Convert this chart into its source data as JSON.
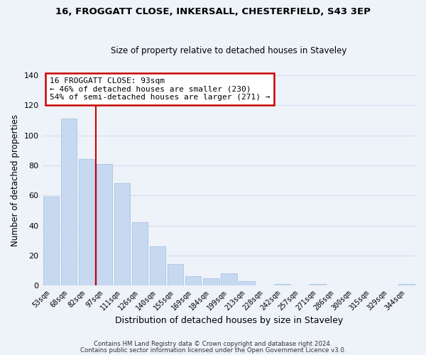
{
  "title_line1": "16, FROGGATT CLOSE, INKERSALL, CHESTERFIELD, S43 3EP",
  "title_line2": "Size of property relative to detached houses in Staveley",
  "xlabel": "Distribution of detached houses by size in Staveley",
  "ylabel": "Number of detached properties",
  "bar_labels": [
    "53sqm",
    "68sqm",
    "82sqm",
    "97sqm",
    "111sqm",
    "126sqm",
    "140sqm",
    "155sqm",
    "169sqm",
    "184sqm",
    "199sqm",
    "213sqm",
    "228sqm",
    "242sqm",
    "257sqm",
    "271sqm",
    "286sqm",
    "300sqm",
    "315sqm",
    "329sqm",
    "344sqm"
  ],
  "bar_values": [
    59,
    111,
    84,
    81,
    68,
    42,
    26,
    14,
    6,
    5,
    8,
    3,
    0,
    1,
    0,
    1,
    0,
    0,
    0,
    0,
    1
  ],
  "bar_color": "#c6d9f0",
  "bar_edge_color": "#a8c4e0",
  "vline_pos": 3.0,
  "annotation_title": "16 FROGGATT CLOSE: 93sqm",
  "annotation_line1": "← 46% of detached houses are smaller (230)",
  "annotation_line2": "54% of semi-detached houses are larger (271) →",
  "annotation_box_color": "#ffffff",
  "annotation_box_edgecolor": "#cc0000",
  "vline_color": "#cc0000",
  "footer_line1": "Contains HM Land Registry data © Crown copyright and database right 2024.",
  "footer_line2": "Contains public sector information licensed under the Open Government Licence v3.0.",
  "ylim": [
    0,
    140
  ],
  "yticks": [
    0,
    20,
    40,
    60,
    80,
    100,
    120,
    140
  ],
  "grid_color": "#d0dff0",
  "background_color": "#eef2f9",
  "title_fontsize": 9.5,
  "subtitle_fontsize": 8.5
}
